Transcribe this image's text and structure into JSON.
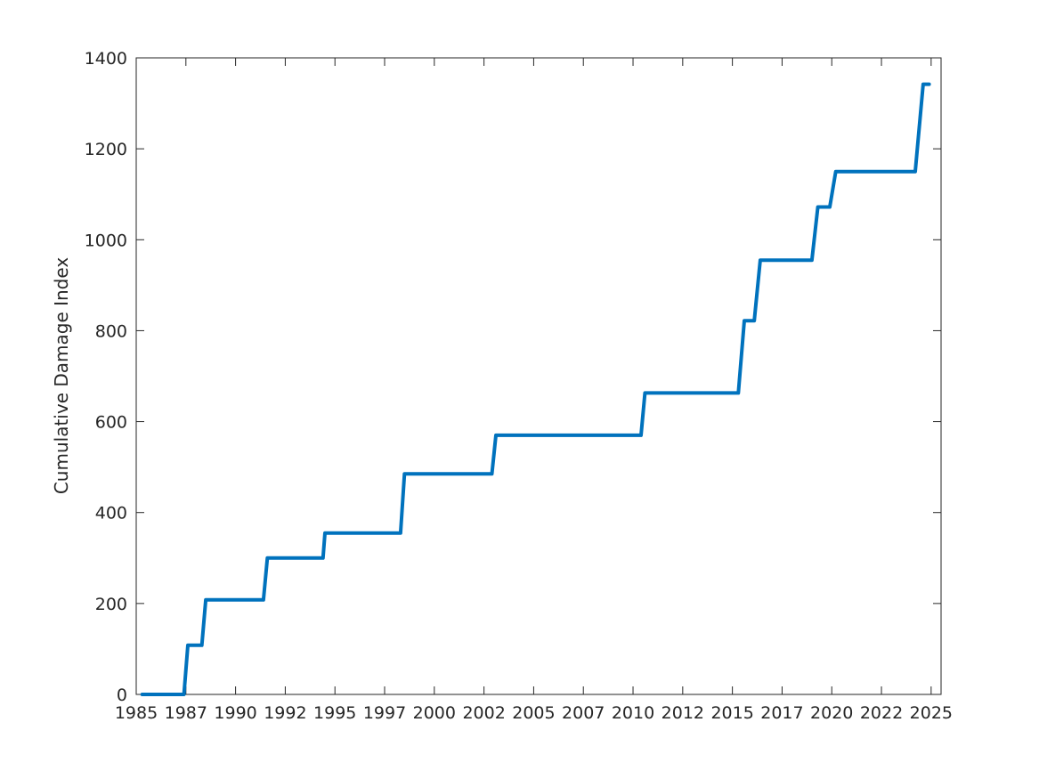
{
  "chart_data": {
    "type": "line",
    "title": "",
    "xlabel": "",
    "ylabel": "Cumulative Damage Index",
    "xlim": [
      1985,
      2025.5
    ],
    "ylim": [
      0,
      1400
    ],
    "grid": false,
    "legend": "none",
    "x_ticks": [
      1985,
      1987.5,
      1990,
      1992.5,
      1995,
      1997.5,
      2000,
      2002.5,
      2005,
      2007.5,
      2010,
      2012.5,
      2015,
      2017.5,
      2020,
      2022.5,
      2025
    ],
    "x_tick_labels": [
      "1985",
      "1987",
      "1990",
      "1992",
      "1995",
      "1997",
      "2000",
      "2002",
      "2005",
      "2007",
      "2010",
      "2012",
      "2015",
      "2017",
      "2020",
      "2022",
      "2025"
    ],
    "y_ticks": [
      0,
      200,
      400,
      600,
      800,
      1000,
      1200,
      1400
    ],
    "y_tick_labels": [
      "0",
      "200",
      "400",
      "600",
      "800",
      "1000",
      "1200",
      "1400"
    ],
    "series": [
      {
        "color": "#0072BD",
        "x": [
          1985.3,
          1987.4,
          1987.6,
          1988.3,
          1988.5,
          1991.4,
          1991.6,
          1994.4,
          1994.5,
          1998.3,
          1998.5,
          2002.9,
          2003.1,
          2010.4,
          2010.6,
          2015.3,
          2015.6,
          2016.1,
          2016.4,
          2019.0,
          2019.3,
          2019.9,
          2020.2,
          2024.2,
          2024.6,
          2024.9
        ],
        "y": [
          0,
          0,
          108,
          108,
          208,
          208,
          300,
          300,
          355,
          355,
          485,
          485,
          570,
          570,
          663,
          663,
          822,
          822,
          955,
          955,
          1072,
          1072,
          1150,
          1150,
          1342,
          1342
        ]
      }
    ]
  }
}
